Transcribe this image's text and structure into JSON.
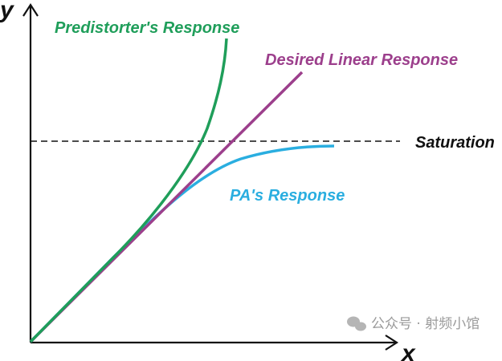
{
  "axes": {
    "x_label": "x",
    "y_label": "y"
  },
  "curves": {
    "predistorter": {
      "label": "Predistorter's Response",
      "color": "#1f9e5a"
    },
    "linear": {
      "label": "Desired Linear Response",
      "color": "#9c3f8c"
    },
    "pa": {
      "label": "PA's Response",
      "color": "#2aaee0"
    }
  },
  "saturation": {
    "label": "Saturation",
    "color": "#111111"
  },
  "watermark": {
    "text": "公众号 · 射频小馆"
  }
}
